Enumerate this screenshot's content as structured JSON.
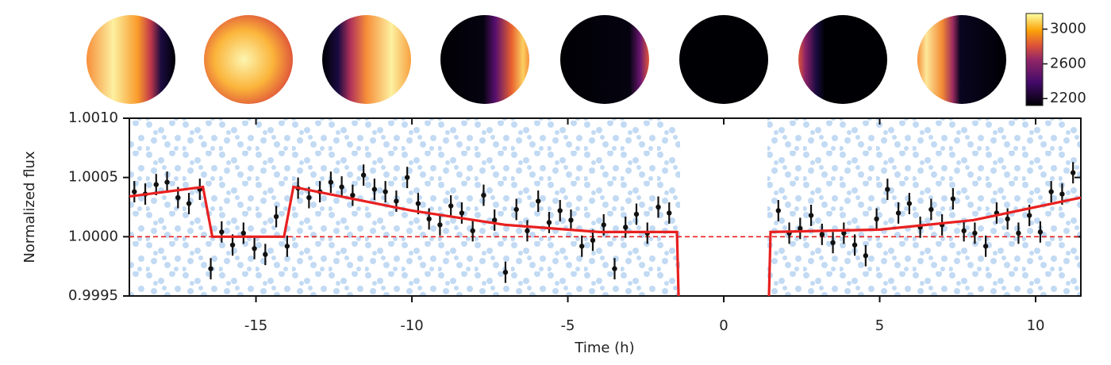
{
  "chart_data": {
    "type": "errorbar",
    "xlabel": "Time (h)",
    "ylabel": "Normalized flux",
    "xlim": [
      -19.06,
      11.45
    ],
    "ylim": [
      0.9995,
      1.001
    ],
    "xticks": [
      -15,
      -10,
      -5,
      0,
      5,
      10
    ],
    "yticks": [
      0.9995,
      {
        "value": 1.0,
        "label": "1.0000"
      },
      1.0005,
      {
        "value": 1.001,
        "label": "1.0010"
      }
    ],
    "hline": 1.0,
    "hline_color": "#e8201f",
    "colorbar": {
      "lim": [
        2120,
        3180
      ],
      "ticks": [
        2200,
        2600,
        3000
      ]
    },
    "series": [
      {
        "type": "errorbar",
        "color": "#111111",
        "x": [
          -18.9,
          -18.55,
          -18.2,
          -17.85,
          -17.5,
          -17.15,
          -16.8,
          -16.45,
          -16.1,
          -15.75,
          -15.4,
          -15.05,
          -14.7,
          -14.35,
          -14.0,
          -13.65,
          -13.3,
          -12.95,
          -12.6,
          -12.25,
          -11.9,
          -11.55,
          -11.2,
          -10.85,
          -10.5,
          -10.15,
          -9.8,
          -9.45,
          -9.1,
          -8.75,
          -8.4,
          -8.05,
          -7.7,
          -7.35,
          -7.0,
          -6.65,
          -6.3,
          -5.95,
          -5.6,
          -5.25,
          -4.9,
          -4.55,
          -4.2,
          -3.85,
          -3.5,
          -3.15,
          -2.8,
          -2.45,
          -2.1,
          -1.75,
          1.75,
          2.1,
          2.45,
          2.8,
          3.15,
          3.5,
          3.85,
          4.2,
          4.55,
          4.9,
          5.25,
          5.6,
          5.95,
          6.3,
          6.65,
          7.0,
          7.35,
          7.7,
          8.05,
          8.4,
          8.75,
          9.1,
          9.45,
          9.8,
          10.15,
          10.5,
          10.85,
          11.2
        ],
        "values": [
          1.00038,
          1.00036,
          1.00044,
          1.00046,
          1.00033,
          1.00028,
          1.0004,
          0.99973,
          1.00004,
          0.99993,
          1.00003,
          0.9999,
          0.99985,
          1.00017,
          0.99992,
          1.00041,
          1.00033,
          1.00038,
          1.00046,
          1.00042,
          1.00035,
          1.00052,
          1.0004,
          1.00038,
          1.0003,
          1.0005,
          1.00028,
          1.00015,
          1.0001,
          1.00026,
          1.0002,
          1.00005,
          1.00035,
          1.00014,
          0.9997,
          1.00023,
          1.00005,
          1.0003,
          1.00012,
          1.00022,
          1.00014,
          0.99992,
          0.99997,
          1.0001,
          0.99973,
          1.00008,
          1.00019,
          1.00003,
          1.00025,
          1.0002,
          1.00022,
          1.00003,
          1.00007,
          1.00018,
          1.00002,
          0.99995,
          1.00003,
          0.99993,
          0.99984,
          1.00015,
          1.0004,
          1.0002,
          1.00028,
          1.00008,
          1.00023,
          1.0001,
          1.00032,
          1.00005,
          1.00003,
          0.99992,
          1.0002,
          1.00015,
          1.00003,
          1.00018,
          1.00004,
          1.00038,
          1.00036,
          1.00054
        ],
        "errors": [
          9e-05,
          9e-05,
          9e-05,
          9e-05,
          9e-05,
          9e-05,
          9e-05,
          9e-05,
          9e-05,
          9e-05,
          9e-05,
          9e-05,
          9e-05,
          9e-05,
          9e-05,
          9e-05,
          9e-05,
          9e-05,
          9e-05,
          9e-05,
          9e-05,
          9e-05,
          9e-05,
          9e-05,
          9e-05,
          9e-05,
          9e-05,
          9e-05,
          9e-05,
          9e-05,
          9e-05,
          9e-05,
          9e-05,
          9e-05,
          9e-05,
          9e-05,
          9e-05,
          9e-05,
          9e-05,
          9e-05,
          9e-05,
          9e-05,
          9e-05,
          9e-05,
          9e-05,
          9e-05,
          9e-05,
          9e-05,
          9e-05,
          9e-05,
          9e-05,
          9e-05,
          9e-05,
          9e-05,
          9e-05,
          9e-05,
          9e-05,
          9e-05,
          9e-05,
          9e-05,
          9e-05,
          9e-05,
          9e-05,
          9e-05,
          9e-05,
          9e-05,
          9e-05,
          9e-05,
          9e-05,
          9e-05,
          9e-05,
          9e-05,
          9e-05,
          9e-05,
          9e-05,
          9e-05,
          9e-05,
          9e-05
        ]
      },
      {
        "type": "line",
        "color": "#e8201f",
        "x": [
          -19.06,
          -16.7,
          -16.4,
          -14.1,
          -13.8,
          -10,
          -7,
          -4,
          -1.5,
          -1.45,
          0,
          1.45,
          1.5,
          5,
          8,
          11.45
        ],
        "values": [
          1.00034,
          1.00042,
          1.0,
          1.0,
          1.00042,
          1.00022,
          1.0001,
          1.00004,
          1.00004,
          0.9995,
          null,
          0.9995,
          1.00004,
          1.00006,
          1.00014,
          1.00033
        ]
      }
    ]
  }
}
